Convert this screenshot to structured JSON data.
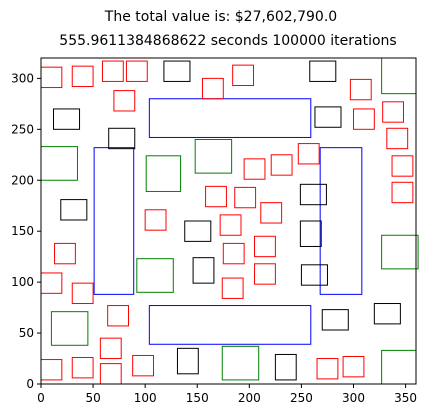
{
  "chart_data": {
    "type": "rectangle-packing",
    "title": "The total value is: $27,602,790.0",
    "subtitle": "555.9611384868622 seconds    100000 iterations",
    "xlim": [
      0,
      360
    ],
    "ylim": [
      0,
      320
    ],
    "xticks": [
      0,
      50,
      100,
      150,
      200,
      250,
      300,
      350
    ],
    "yticks": [
      0,
      50,
      100,
      150,
      200,
      250,
      300
    ],
    "xlabel": "",
    "ylabel": "",
    "grid": false,
    "colors": {
      "blue": "#0000ff",
      "red": "#ff0000",
      "black": "#000000",
      "green": "#008000"
    },
    "rects": [
      {
        "x": 104,
        "y": 242,
        "w": 155,
        "h": 38,
        "color": "blue"
      },
      {
        "x": 104,
        "y": 39,
        "w": 155,
        "h": 38,
        "color": "blue"
      },
      {
        "x": 51,
        "y": 88,
        "w": 38,
        "h": 144,
        "color": "blue"
      },
      {
        "x": 268,
        "y": 88,
        "w": 40,
        "h": 144,
        "color": "blue"
      },
      {
        "x": 0,
        "y": 291,
        "w": 20,
        "h": 20,
        "color": "red"
      },
      {
        "x": 30,
        "y": 292,
        "w": 20,
        "h": 20,
        "color": "red"
      },
      {
        "x": 59,
        "y": 297,
        "w": 20,
        "h": 20,
        "color": "red"
      },
      {
        "x": 82,
        "y": 297,
        "w": 20,
        "h": 20,
        "color": "red"
      },
      {
        "x": 70,
        "y": 268,
        "w": 20,
        "h": 20,
        "color": "red"
      },
      {
        "x": 155,
        "y": 280,
        "w": 20,
        "h": 20,
        "color": "red"
      },
      {
        "x": 184,
        "y": 293,
        "w": 20,
        "h": 20,
        "color": "red"
      },
      {
        "x": 297,
        "y": 279,
        "w": 20,
        "h": 20,
        "color": "red"
      },
      {
        "x": 300,
        "y": 250,
        "w": 20,
        "h": 20,
        "color": "red"
      },
      {
        "x": 328,
        "y": 257,
        "w": 20,
        "h": 20,
        "color": "red"
      },
      {
        "x": 332,
        "y": 231,
        "w": 20,
        "h": 20,
        "color": "red"
      },
      {
        "x": 337,
        "y": 204,
        "w": 20,
        "h": 20,
        "color": "red"
      },
      {
        "x": 337,
        "y": 178,
        "w": 20,
        "h": 20,
        "color": "red"
      },
      {
        "x": 195,
        "y": 201,
        "w": 20,
        "h": 20,
        "color": "red"
      },
      {
        "x": 221,
        "y": 205,
        "w": 20,
        "h": 20,
        "color": "red"
      },
      {
        "x": 247,
        "y": 216,
        "w": 20,
        "h": 20,
        "color": "red"
      },
      {
        "x": 158,
        "y": 174,
        "w": 20,
        "h": 20,
        "color": "red"
      },
      {
        "x": 186,
        "y": 173,
        "w": 20,
        "h": 20,
        "color": "red"
      },
      {
        "x": 211,
        "y": 158,
        "w": 20,
        "h": 20,
        "color": "red"
      },
      {
        "x": 172,
        "y": 146,
        "w": 20,
        "h": 20,
        "color": "red"
      },
      {
        "x": 100,
        "y": 151,
        "w": 20,
        "h": 20,
        "color": "red"
      },
      {
        "x": 205,
        "y": 125,
        "w": 20,
        "h": 20,
        "color": "red"
      },
      {
        "x": 175,
        "y": 118,
        "w": 20,
        "h": 20,
        "color": "red"
      },
      {
        "x": 205,
        "y": 98,
        "w": 20,
        "h": 20,
        "color": "red"
      },
      {
        "x": 174,
        "y": 84,
        "w": 20,
        "h": 20,
        "color": "red"
      },
      {
        "x": 13,
        "y": 118,
        "w": 20,
        "h": 20,
        "color": "red"
      },
      {
        "x": 0,
        "y": 89,
        "w": 20,
        "h": 20,
        "color": "red"
      },
      {
        "x": 30,
        "y": 79,
        "w": 20,
        "h": 20,
        "color": "red"
      },
      {
        "x": 64,
        "y": 57,
        "w": 20,
        "h": 20,
        "color": "red"
      },
      {
        "x": 57,
        "y": 25,
        "w": 20,
        "h": 20,
        "color": "red"
      },
      {
        "x": 0,
        "y": 4,
        "w": 20,
        "h": 20,
        "color": "red"
      },
      {
        "x": 30,
        "y": 6,
        "w": 20,
        "h": 20,
        "color": "red"
      },
      {
        "x": 57,
        "y": 0,
        "w": 20,
        "h": 20,
        "color": "red"
      },
      {
        "x": 88,
        "y": 8,
        "w": 20,
        "h": 20,
        "color": "red"
      },
      {
        "x": 265,
        "y": 5,
        "w": 20,
        "h": 20,
        "color": "red"
      },
      {
        "x": 290,
        "y": 7,
        "w": 20,
        "h": 20,
        "color": "red"
      },
      {
        "x": 118,
        "y": 297,
        "w": 25,
        "h": 20,
        "color": "black"
      },
      {
        "x": 258,
        "y": 297,
        "w": 25,
        "h": 20,
        "color": "black"
      },
      {
        "x": 12,
        "y": 250,
        "w": 25,
        "h": 20,
        "color": "black"
      },
      {
        "x": 65,
        "y": 231,
        "w": 25,
        "h": 20,
        "color": "black"
      },
      {
        "x": 263,
        "y": 252,
        "w": 25,
        "h": 20,
        "color": "black"
      },
      {
        "x": 249,
        "y": 176,
        "w": 25,
        "h": 20,
        "color": "black"
      },
      {
        "x": 19,
        "y": 161,
        "w": 25,
        "h": 20,
        "color": "black"
      },
      {
        "x": 138,
        "y": 140,
        "w": 25,
        "h": 20,
        "color": "black"
      },
      {
        "x": 249,
        "y": 135,
        "w": 20,
        "h": 25,
        "color": "black"
      },
      {
        "x": 146,
        "y": 99,
        "w": 20,
        "h": 25,
        "color": "black"
      },
      {
        "x": 250,
        "y": 97,
        "w": 25,
        "h": 20,
        "color": "black"
      },
      {
        "x": 270,
        "y": 53,
        "w": 25,
        "h": 20,
        "color": "black"
      },
      {
        "x": 320,
        "y": 59,
        "w": 25,
        "h": 20,
        "color": "black"
      },
      {
        "x": 131,
        "y": 10,
        "w": 20,
        "h": 25,
        "color": "black"
      },
      {
        "x": 225,
        "y": 4,
        "w": 20,
        "h": 25,
        "color": "black"
      },
      {
        "x": 327,
        "y": 285,
        "w": 33,
        "h": 35,
        "color": "green"
      },
      {
        "x": 0,
        "y": 200,
        "w": 35,
        "h": 33,
        "color": "green"
      },
      {
        "x": 148,
        "y": 207,
        "w": 35,
        "h": 33,
        "color": "green"
      },
      {
        "x": 101,
        "y": 189,
        "w": 33,
        "h": 35,
        "color": "green"
      },
      {
        "x": 327,
        "y": 113,
        "w": 35,
        "h": 33,
        "color": "green"
      },
      {
        "x": 92,
        "y": 90,
        "w": 35,
        "h": 33,
        "color": "green"
      },
      {
        "x": 10,
        "y": 38,
        "w": 35,
        "h": 33,
        "color": "green"
      },
      {
        "x": 174,
        "y": 4,
        "w": 35,
        "h": 33,
        "color": "green"
      },
      {
        "x": 327,
        "y": 0,
        "w": 33,
        "h": 33,
        "color": "green"
      }
    ]
  }
}
